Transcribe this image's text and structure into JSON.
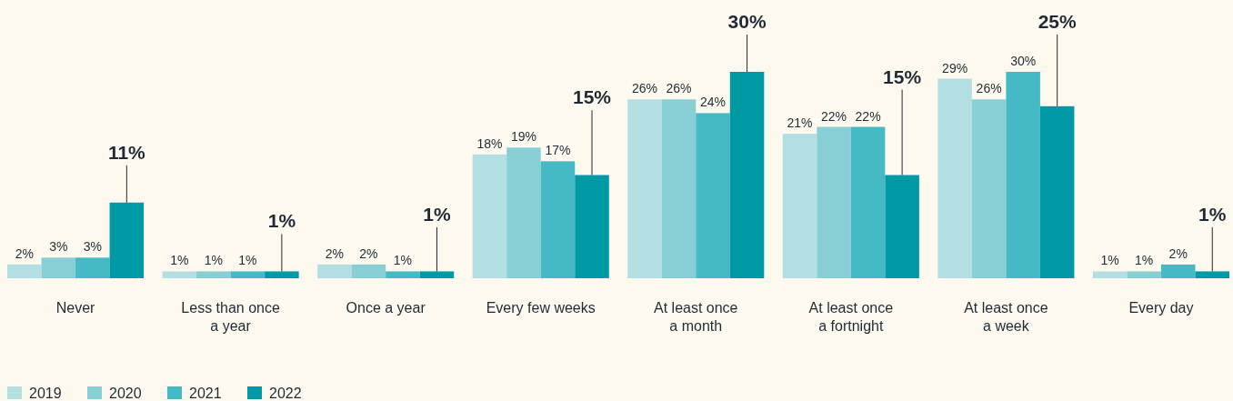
{
  "chart_data": {
    "type": "bar",
    "categories": [
      "Never",
      "Less than once\na year",
      "Once a year",
      "Every few weeks",
      "At least once\na month",
      "At least once\na fortnight",
      "At least once\na week",
      "Every day"
    ],
    "series": [
      {
        "name": "2019",
        "color": "#b3dfe3",
        "values": [
          2,
          1,
          2,
          18,
          26,
          21,
          29,
          1
        ],
        "value_labels": [
          "2%",
          "1%",
          "2%",
          "18%",
          "26%",
          "21%",
          "29%",
          "1%"
        ]
      },
      {
        "name": "2020",
        "color": "#88cfd5",
        "values": [
          3,
          1,
          2,
          19,
          26,
          22,
          26,
          1
        ],
        "value_labels": [
          "3%",
          "1%",
          "2%",
          "19%",
          "26%",
          "22%",
          "26%",
          "1%"
        ]
      },
      {
        "name": "2021",
        "color": "#45b9c4",
        "values": [
          3,
          1,
          1,
          17,
          24,
          22,
          30,
          2
        ],
        "value_labels": [
          "3%",
          "1%",
          "1%",
          "17%",
          "24%",
          "22%",
          "30%",
          "2%"
        ]
      },
      {
        "name": "2022",
        "color": "#0099a6",
        "values": [
          11,
          1,
          1,
          15,
          30,
          15,
          25,
          1
        ],
        "value_labels": [
          "11%",
          "1%",
          "1%",
          "15%",
          "30%",
          "15%",
          "25%",
          "1%"
        ]
      }
    ],
    "legend": "bottom left",
    "grid": false
  }
}
